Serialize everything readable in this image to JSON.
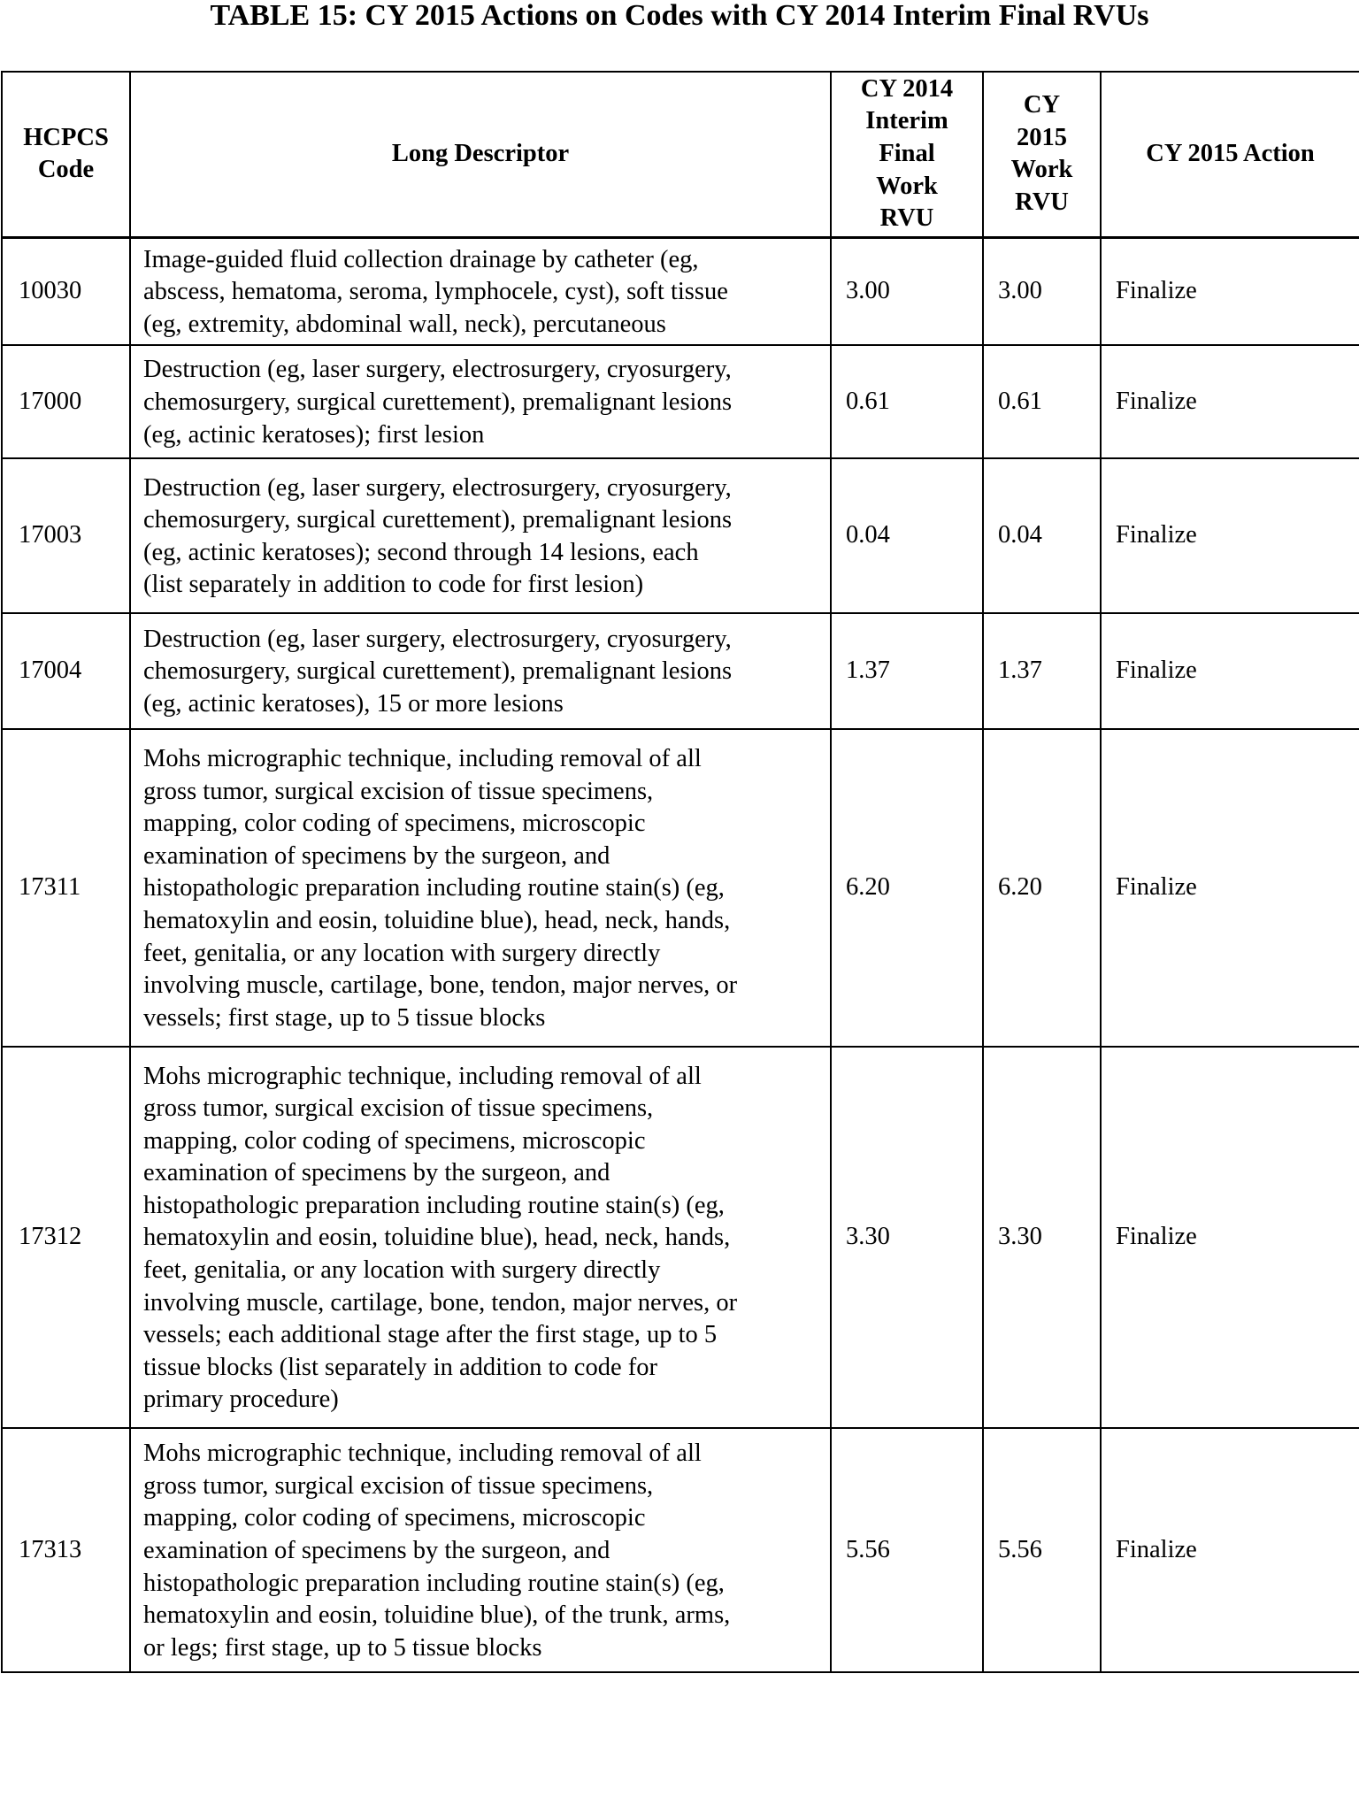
{
  "title": "TABLE 15:  CY 2015 Actions on Codes with CY 2014 Interim Final RVUs",
  "headers": {
    "code": "HCPCS\nCode",
    "descriptor": "Long Descriptor",
    "interim_rvu": "CY 2014\nInterim\nFinal\nWork\nRVU",
    "work_rvu": "CY\n2015\nWork\nRVU",
    "action": "CY 2015 Action"
  },
  "rows": [
    {
      "code": "10030",
      "descriptor": "Image-guided fluid collection drainage by catheter (eg,\nabscess, hematoma, seroma, lymphocele, cyst), soft tissue\n(eg, extremity, abdominal wall, neck), percutaneous",
      "interim_rvu": "3.00",
      "work_rvu": "3.00",
      "action": "Finalize"
    },
    {
      "code": "17000",
      "descriptor": "Destruction (eg, laser surgery, electrosurgery, cryosurgery,\nchemosurgery, surgical curettement), premalignant lesions\n(eg, actinic keratoses); first lesion",
      "interim_rvu": "0.61",
      "work_rvu": "0.61",
      "action": "Finalize"
    },
    {
      "code": "17003",
      "descriptor": "Destruction (eg, laser surgery, electrosurgery, cryosurgery,\nchemosurgery, surgical curettement), premalignant lesions\n(eg, actinic keratoses); second through 14 lesions, each\n(list separately in addition to code for first lesion)",
      "interim_rvu": "0.04",
      "work_rvu": "0.04",
      "action": "Finalize"
    },
    {
      "code": "17004",
      "descriptor": "Destruction (eg, laser surgery, electrosurgery, cryosurgery,\nchemosurgery, surgical curettement), premalignant lesions\n(eg, actinic keratoses), 15 or more lesions",
      "interim_rvu": "1.37",
      "work_rvu": "1.37",
      "action": "Finalize"
    },
    {
      "code": "17311",
      "descriptor": "Mohs micrographic technique, including removal of all\ngross tumor, surgical excision of tissue specimens,\nmapping, color coding of specimens, microscopic\nexamination of specimens by the surgeon, and\nhistopathologic preparation including routine stain(s) (eg,\nhematoxylin and eosin, toluidine blue), head, neck, hands,\nfeet, genitalia, or any location with surgery directly\ninvolving muscle, cartilage, bone, tendon, major nerves, or\nvessels; first stage, up to 5 tissue blocks",
      "interim_rvu": "6.20",
      "work_rvu": "6.20",
      "action": "Finalize"
    },
    {
      "code": "17312",
      "descriptor": "Mohs micrographic technique, including removal of all\ngross tumor, surgical excision of tissue specimens,\nmapping, color coding of specimens, microscopic\nexamination of specimens by the surgeon, and\nhistopathologic preparation including routine stain(s) (eg,\nhematoxylin and eosin, toluidine blue), head, neck, hands,\nfeet, genitalia, or any location with surgery directly\ninvolving muscle, cartilage, bone, tendon, major nerves, or\nvessels; each additional stage after the first stage, up to 5\ntissue blocks (list separately in addition to code for\nprimary procedure)",
      "interim_rvu": "3.30",
      "work_rvu": "3.30",
      "action": "Finalize"
    },
    {
      "code": "17313",
      "descriptor": "Mohs micrographic technique, including removal of all\ngross tumor, surgical excision of tissue specimens,\nmapping, color coding of specimens, microscopic\nexamination of specimens by the surgeon, and\nhistopathologic preparation including routine stain(s) (eg,\nhematoxylin and eosin, toluidine blue), of the trunk, arms,\nor legs; first stage, up to 5 tissue blocks",
      "interim_rvu": "5.56",
      "work_rvu": "5.56",
      "action": "Finalize"
    }
  ]
}
